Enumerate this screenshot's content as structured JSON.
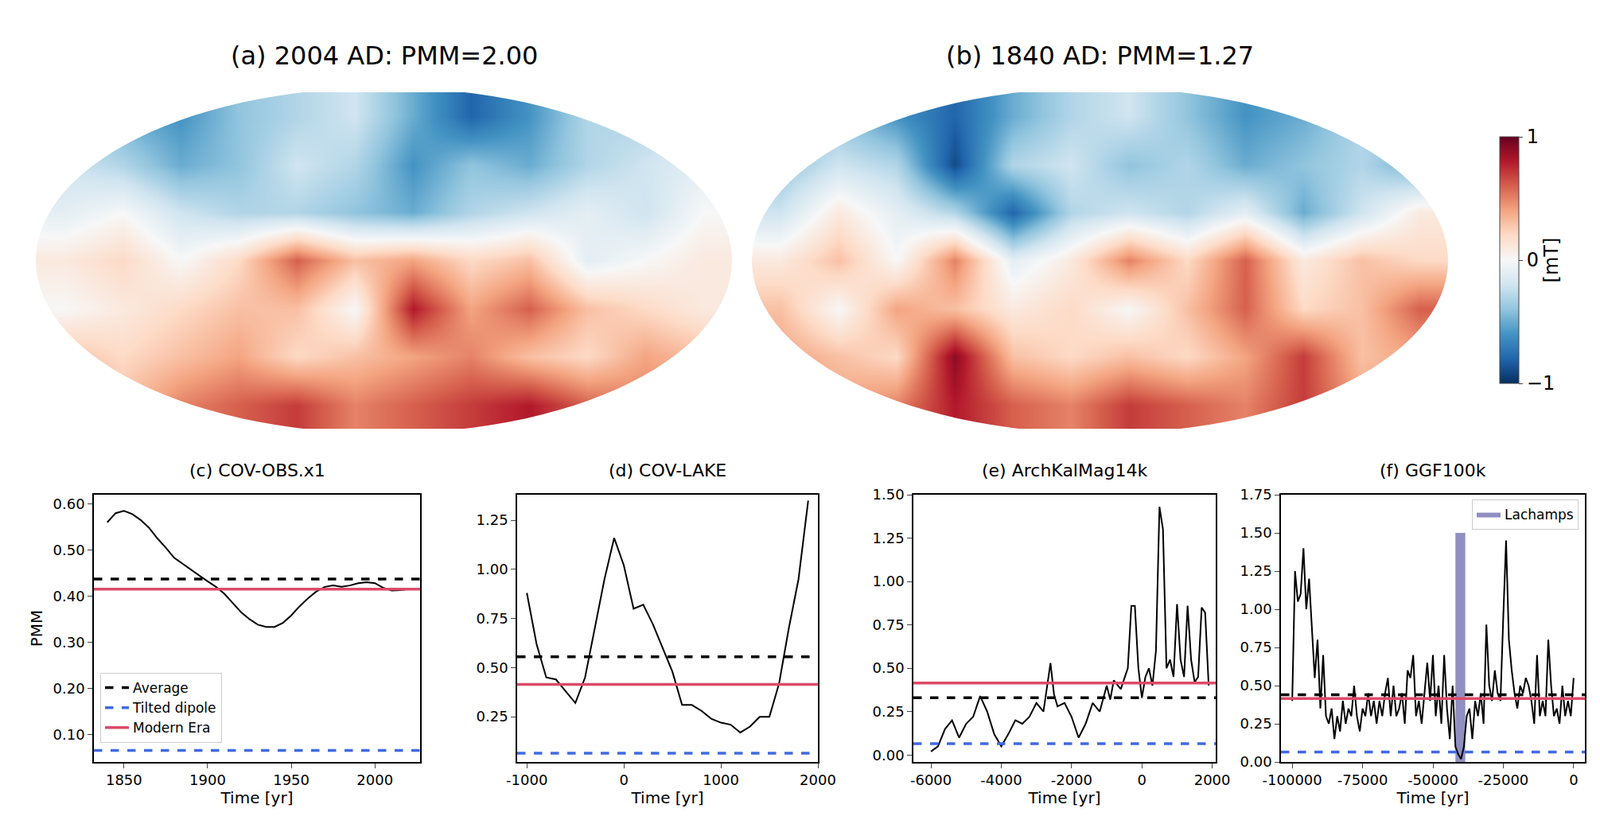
{
  "chart_data": [
    {
      "type": "heatmap",
      "title": "(a) 2004 AD: PMM=2.00",
      "x": [
        -165,
        -135,
        -105,
        -75,
        -45,
        -15,
        15,
        45,
        75,
        105,
        135,
        165
      ],
      "y": [
        -75,
        -50,
        -25,
        0,
        25,
        50,
        75
      ],
      "z": [
        [
          0.4,
          0.3,
          0.5,
          0.6,
          0.7,
          0.5,
          0.6,
          0.7,
          0.8,
          0.6,
          0.5,
          0.4
        ],
        [
          0.3,
          0.2,
          0.3,
          0.4,
          0.2,
          0.3,
          0.4,
          0.5,
          0.3,
          0.2,
          0.4,
          0.3
        ],
        [
          0.0,
          0.1,
          0.2,
          0.3,
          0.3,
          0.0,
          0.8,
          0.4,
          0.6,
          0.3,
          0.2,
          0.1
        ],
        [
          0.1,
          0.2,
          0.0,
          0.2,
          0.6,
          0.3,
          0.4,
          0.2,
          0.3,
          -0.1,
          0.0,
          0.1
        ],
        [
          -0.1,
          0.0,
          -0.2,
          -0.3,
          -0.3,
          -0.4,
          -0.5,
          -0.3,
          -0.2,
          -0.1,
          -0.2,
          0.0
        ],
        [
          -0.2,
          -0.3,
          -0.5,
          -0.4,
          -0.2,
          -0.3,
          -0.6,
          -0.4,
          -0.5,
          -0.3,
          -0.2,
          -0.1
        ],
        [
          -0.3,
          -0.5,
          -0.6,
          -0.4,
          -0.3,
          -0.2,
          -0.5,
          -0.8,
          -0.6,
          -0.3,
          -0.3,
          -0.2
        ]
      ],
      "xlim": [
        -180,
        180
      ],
      "ylim": [
        -90,
        90
      ],
      "tick_labels": false
    },
    {
      "type": "heatmap",
      "title": "(b) 1840 AD: PMM=1.27",
      "x": [
        -165,
        -135,
        -105,
        -75,
        -45,
        -15,
        15,
        45,
        75,
        105,
        135,
        165
      ],
      "y": [
        -75,
        -50,
        -25,
        0,
        25,
        50,
        75
      ],
      "z": [
        [
          0.5,
          0.4,
          0.5,
          0.8,
          0.6,
          0.5,
          0.7,
          0.6,
          0.5,
          0.7,
          0.4,
          0.5
        ],
        [
          0.4,
          0.3,
          0.2,
          0.9,
          0.3,
          0.2,
          0.3,
          0.2,
          0.4,
          0.7,
          0.3,
          0.4
        ],
        [
          0.3,
          0.0,
          0.4,
          0.3,
          0.1,
          0.2,
          0.0,
          0.3,
          0.6,
          0.2,
          0.3,
          0.6
        ],
        [
          0.1,
          0.3,
          0.0,
          0.5,
          -0.1,
          0.1,
          0.5,
          0.2,
          0.6,
          0.1,
          0.3,
          0.2
        ],
        [
          -0.2,
          0.1,
          -0.1,
          -0.3,
          -0.8,
          -0.3,
          -0.2,
          -0.3,
          -0.1,
          -0.5,
          -0.2,
          0.1
        ],
        [
          -0.4,
          -0.2,
          -0.3,
          -0.9,
          -0.3,
          -0.2,
          -0.4,
          -0.3,
          -0.5,
          -0.4,
          -0.3,
          -0.5
        ],
        [
          -0.3,
          -0.4,
          -0.6,
          -0.8,
          -0.5,
          -0.3,
          -0.2,
          -0.4,
          -0.6,
          -0.5,
          -0.3,
          -0.3
        ]
      ],
      "xlim": [
        -180,
        180
      ],
      "ylim": [
        -90,
        90
      ],
      "tick_labels": false,
      "colorbar": {
        "range": [
          -1,
          1
        ],
        "ticks": [
          {
            "value": -1,
            "label": "−1"
          },
          0,
          1
        ],
        "title": "[mT]"
      }
    },
    {
      "type": "line",
      "title": "(c) COV-OBS.x1",
      "x_label": "Time [yr]",
      "y_label": "PMM",
      "color": "#000000",
      "x": [
        1840,
        1845,
        1850,
        1855,
        1860,
        1865,
        1870,
        1875,
        1880,
        1885,
        1890,
        1895,
        1900,
        1905,
        1910,
        1915,
        1920,
        1925,
        1930,
        1935,
        1940,
        1945,
        1950,
        1955,
        1960,
        1965,
        1970,
        1975,
        1980,
        1985,
        1990,
        1995,
        2000,
        2005,
        2010,
        2015,
        2020
      ],
      "values": [
        0.56,
        0.58,
        0.585,
        0.578,
        0.565,
        0.548,
        0.525,
        0.505,
        0.483,
        0.47,
        0.458,
        0.445,
        0.432,
        0.42,
        0.405,
        0.385,
        0.365,
        0.35,
        0.338,
        0.333,
        0.333,
        0.342,
        0.358,
        0.378,
        0.395,
        0.41,
        0.42,
        0.423,
        0.42,
        0.423,
        0.428,
        0.43,
        0.428,
        0.418,
        0.412,
        0.413,
        0.415
      ],
      "xlim": [
        1832,
        2027
      ],
      "xticks": [
        1850,
        1900,
        1950,
        2000
      ],
      "ylim": [
        0.04,
        0.62
      ],
      "yticks": [
        {
          "value": 0.1,
          "label": "0.10"
        },
        {
          "value": 0.2,
          "label": "0.20"
        },
        {
          "value": 0.3,
          "label": "0.30"
        },
        {
          "value": 0.4,
          "label": "0.40"
        },
        {
          "value": 0.5,
          "label": "0.50"
        },
        {
          "value": 0.6,
          "label": "0.60"
        }
      ],
      "reference_lines": [
        {
          "name": "Average",
          "value": 0.437,
          "color": "#000000",
          "line_style": "dashed"
        },
        {
          "name": "Tilted dipole",
          "value": 0.065,
          "color": "#4169e1",
          "line_style": "dashed"
        },
        {
          "name": "Modern Era",
          "value": 0.415,
          "color": "#dc4a68",
          "line_style": "solid"
        }
      ],
      "legend": "lower left"
    },
    {
      "type": "line",
      "title": "(d) COV-LAKE",
      "x_label": "Time [yr]",
      "color": "#000000",
      "x": [
        -1000,
        -900,
        -800,
        -700,
        -600,
        -500,
        -400,
        -300,
        -200,
        -100,
        0,
        100,
        200,
        300,
        400,
        500,
        600,
        700,
        800,
        900,
        1000,
        1100,
        1200,
        1300,
        1400,
        1500,
        1600,
        1700,
        1800,
        1900
      ],
      "values": [
        0.88,
        0.62,
        0.45,
        0.44,
        0.38,
        0.32,
        0.45,
        0.7,
        0.95,
        1.16,
        1.02,
        0.8,
        0.82,
        0.72,
        0.6,
        0.48,
        0.31,
        0.31,
        0.28,
        0.24,
        0.22,
        0.21,
        0.17,
        0.2,
        0.25,
        0.25,
        0.42,
        0.7,
        0.95,
        1.35
      ],
      "xlim": [
        -1100,
        2000
      ],
      "xticks": [
        -1000,
        0,
        1000,
        2000
      ],
      "ylim": [
        0.02,
        1.38
      ],
      "yticks": [
        {
          "value": 0.25,
          "label": "0.25"
        },
        {
          "value": 0.5,
          "label": "0.50"
        },
        {
          "value": 0.75,
          "label": "0.75"
        },
        {
          "value": 1,
          "label": "1.00"
        },
        {
          "value": 1.25,
          "label": "1.25"
        }
      ],
      "reference_lines": [
        {
          "value": 0.555,
          "color": "#000000",
          "line_style": "dashed"
        },
        {
          "value": 0.065,
          "color": "#4169e1",
          "line_style": "dashed"
        },
        {
          "value": 0.415,
          "color": "#dc4a68",
          "line_style": "solid"
        }
      ]
    },
    {
      "type": "line",
      "title": "(e) ArchKalMag14k",
      "x_label": "Time [yr]",
      "color": "#000000",
      "x": [
        -6000,
        -5800,
        -5600,
        -5400,
        -5200,
        -5000,
        -4800,
        -4600,
        -4400,
        -4200,
        -4000,
        -3800,
        -3600,
        -3400,
        -3200,
        -3000,
        -2800,
        -2600,
        -2500,
        -2400,
        -2200,
        -2000,
        -1800,
        -1600,
        -1400,
        -1200,
        -1000,
        -900,
        -800,
        -600,
        -400,
        -300,
        -200,
        -100,
        0,
        100,
        200,
        300,
        400,
        500,
        600,
        700,
        800,
        900,
        1000,
        1100,
        1200,
        1300,
        1400,
        1500,
        1600,
        1700,
        1800,
        1900
      ],
      "values": [
        0.02,
        0.05,
        0.15,
        0.2,
        0.1,
        0.18,
        0.22,
        0.34,
        0.25,
        0.12,
        0.05,
        0.12,
        0.2,
        0.18,
        0.22,
        0.3,
        0.25,
        0.53,
        0.35,
        0.28,
        0.3,
        0.22,
        0.1,
        0.18,
        0.3,
        0.25,
        0.4,
        0.32,
        0.43,
        0.38,
        0.5,
        0.86,
        0.86,
        0.5,
        0.33,
        0.45,
        0.5,
        0.4,
        0.6,
        1.43,
        1.3,
        0.5,
        0.55,
        0.45,
        0.87,
        0.55,
        0.45,
        0.86,
        0.55,
        0.42,
        0.45,
        0.85,
        0.82,
        0.4
      ],
      "xlim": [
        -6500,
        2100
      ],
      "xticks": [
        -6000,
        -4000,
        -2000,
        0,
        2000
      ],
      "ylim": [
        -0.04,
        1.5
      ],
      "yticks": [
        {
          "value": 0,
          "label": "0.00"
        },
        {
          "value": 0.25,
          "label": "0.25"
        },
        {
          "value": 0.5,
          "label": "0.50"
        },
        {
          "value": 0.75,
          "label": "0.75"
        },
        {
          "value": 1,
          "label": "1.00"
        },
        {
          "value": 1.25,
          "label": "1.25"
        },
        {
          "value": 1.5,
          "label": "1.50"
        }
      ],
      "reference_lines": [
        {
          "value": 0.33,
          "color": "#000000",
          "line_style": "dashed"
        },
        {
          "value": 0.065,
          "color": "#4169e1",
          "line_style": "dashed"
        },
        {
          "value": 0.415,
          "color": "#dc4a68",
          "line_style": "solid"
        }
      ]
    },
    {
      "type": "line",
      "title": "(f) GGF100k",
      "x_label": "Time [yr]",
      "color": "#000000",
      "x": [
        -100000,
        -99000,
        -98000,
        -97000,
        -96000,
        -95000,
        -94000,
        -93000,
        -92000,
        -91000,
        -90000,
        -89000,
        -88000,
        -87000,
        -86000,
        -85000,
        -84000,
        -83000,
        -82000,
        -81000,
        -80000,
        -79000,
        -78000,
        -77000,
        -76000,
        -75000,
        -74000,
        -73000,
        -72000,
        -71000,
        -70000,
        -69000,
        -68000,
        -67000,
        -66000,
        -65000,
        -64000,
        -63000,
        -62000,
        -61000,
        -60000,
        -59000,
        -58000,
        -57000,
        -56000,
        -55000,
        -54000,
        -53000,
        -52000,
        -51000,
        -50000,
        -49000,
        -48000,
        -47000,
        -46000,
        -45000,
        -44000,
        -43000,
        -42000,
        -41000,
        -40000,
        -39000,
        -38000,
        -37000,
        -36000,
        -35000,
        -34000,
        -33000,
        -32000,
        -31000,
        -30000,
        -29000,
        -28000,
        -27000,
        -26000,
        -25000,
        -24000,
        -23000,
        -22000,
        -21000,
        -20000,
        -19000,
        -18000,
        -17000,
        -16000,
        -15000,
        -14000,
        -13000,
        -12000,
        -11000,
        -10000,
        -9000,
        -8000,
        -7000,
        -6000,
        -5000,
        -4000,
        -3000,
        -2000,
        -1000,
        0
      ],
      "values": [
        0.4,
        1.25,
        1.05,
        1.1,
        1.4,
        1.0,
        1.2,
        0.9,
        0.55,
        0.8,
        0.35,
        0.7,
        0.3,
        0.25,
        0.35,
        0.15,
        0.3,
        0.2,
        0.4,
        0.25,
        0.35,
        0.3,
        0.5,
        0.3,
        0.2,
        0.35,
        0.3,
        0.45,
        0.3,
        0.4,
        0.25,
        0.4,
        0.3,
        0.45,
        0.55,
        0.3,
        0.5,
        0.3,
        0.35,
        0.45,
        0.25,
        0.6,
        0.55,
        0.7,
        0.3,
        0.4,
        0.25,
        0.45,
        0.65,
        0.4,
        0.7,
        0.3,
        0.5,
        0.25,
        0.7,
        0.35,
        0.15,
        0.5,
        0.1,
        0.05,
        0.02,
        0.1,
        0.3,
        0.35,
        0.15,
        0.4,
        0.3,
        0.45,
        0.25,
        0.9,
        0.5,
        0.4,
        0.6,
        0.45,
        0.4,
        0.95,
        1.45,
        0.8,
        0.6,
        0.45,
        0.35,
        0.5,
        0.45,
        0.55,
        0.5,
        0.4,
        0.25,
        0.7,
        0.3,
        0.4,
        0.3,
        0.8,
        0.5,
        0.3,
        0.35,
        0.25,
        0.5,
        0.3,
        0.4,
        0.3,
        0.55
      ],
      "xlim": [
        -104000,
        4000
      ],
      "xticks": [
        -100000,
        -75000,
        -50000,
        -25000,
        0
      ],
      "ylim": [
        0,
        1.75
      ],
      "yticks": [
        {
          "value": 0,
          "label": "0.00"
        },
        {
          "value": 0.25,
          "label": "0.25"
        },
        {
          "value": 0.5,
          "label": "0.50"
        },
        {
          "value": 0.75,
          "label": "0.75"
        },
        {
          "value": 1,
          "label": "1.00"
        },
        {
          "value": 1.25,
          "label": "1.25"
        },
        {
          "value": 1.5,
          "label": "1.50"
        },
        {
          "value": 1.75,
          "label": "1.75"
        }
      ],
      "reference_lines": [
        {
          "value": 0.44,
          "color": "#000000",
          "line_style": "dashed"
        },
        {
          "value": 0.065,
          "color": "#4169e1",
          "line_style": "dashed"
        },
        {
          "value": 0.415,
          "color": "#dc4a68",
          "line_style": "solid"
        }
      ],
      "bands": [
        {
          "name": "Lachamps",
          "x0": -42000,
          "x1": -38500,
          "y0": 0,
          "y1": 1.5,
          "color": "#8f8fc0"
        }
      ],
      "legend": "upper right"
    }
  ]
}
